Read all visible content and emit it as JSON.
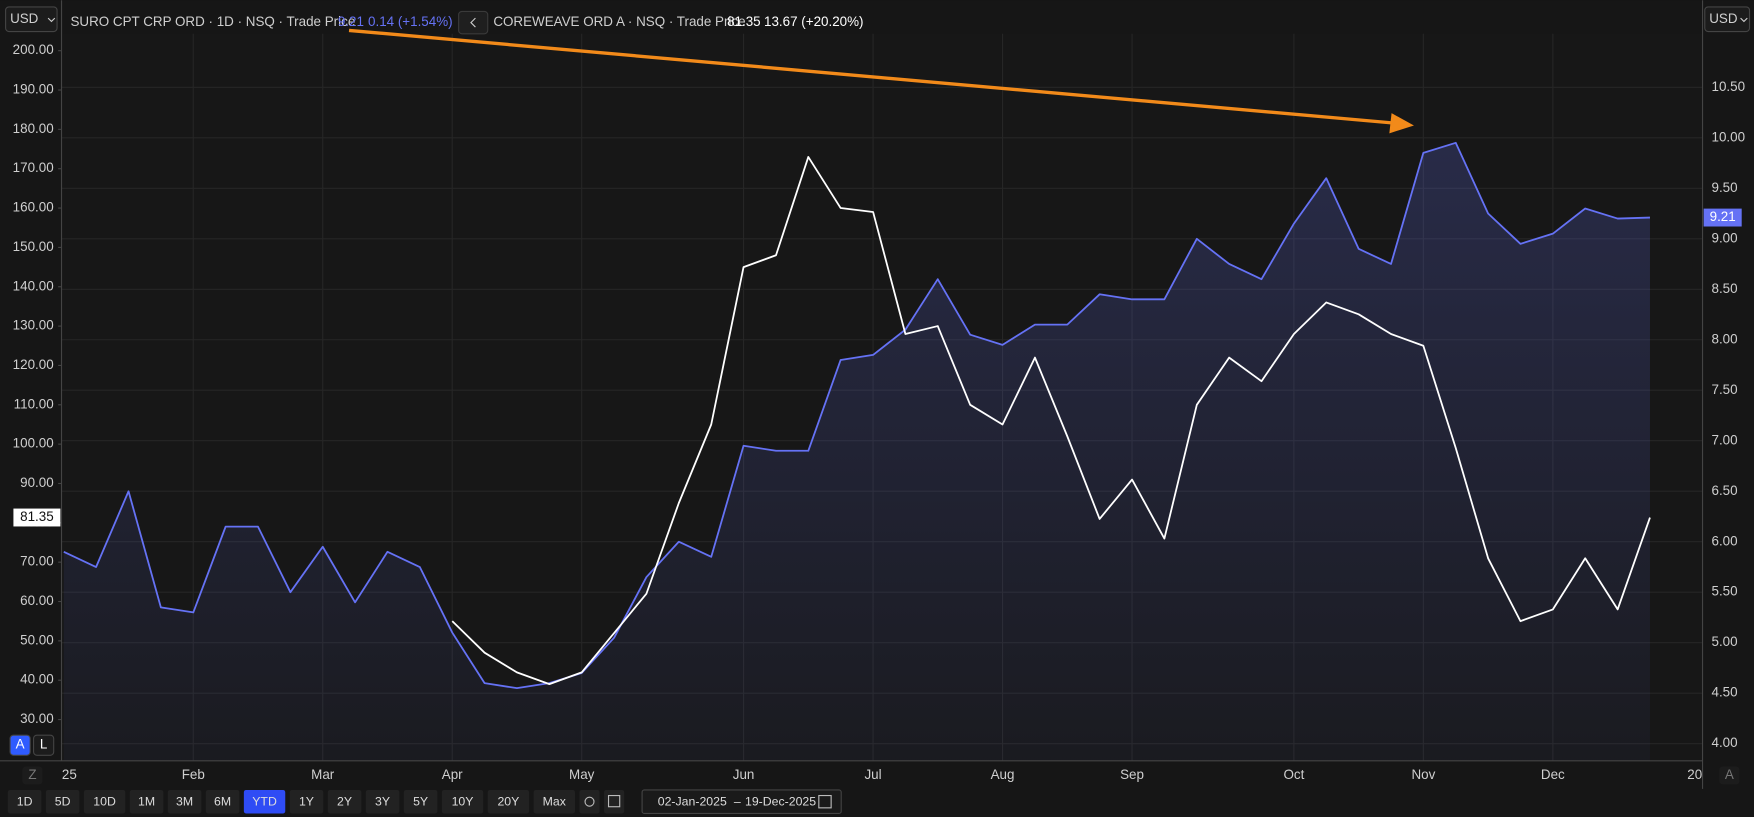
{
  "chart_data": {
    "type": "line",
    "currency_left": "USD",
    "currency_right": "USD",
    "categories": [
      "25",
      null,
      null,
      null,
      "Feb",
      null,
      null,
      null,
      "Mar",
      null,
      null,
      null,
      "Apr",
      null,
      null,
      null,
      "May",
      null,
      null,
      null,
      null,
      "Jun",
      null,
      null,
      null,
      "Jul",
      null,
      null,
      null,
      "Aug",
      null,
      null,
      null,
      "Sep",
      null,
      null,
      null,
      null,
      "Oct",
      null,
      null,
      null,
      "Nov",
      null,
      null,
      null,
      "Dec",
      null,
      null,
      null
    ],
    "x_end_label": "20",
    "series": [
      {
        "name": "SURO CPT CRP ORD · 1D · NSQ · Trade Price",
        "change": "0.14 (+1.54%)",
        "color": "#6572f5",
        "axis": "y2",
        "area": true,
        "values": [
          5.9,
          5.75,
          6.5,
          5.35,
          5.3,
          6.15,
          6.15,
          5.5,
          5.95,
          5.4,
          5.9,
          5.75,
          5.1,
          4.6,
          4.55,
          4.6,
          4.7,
          5.05,
          5.65,
          6.0,
          5.85,
          6.95,
          6.9,
          6.9,
          7.8,
          7.85,
          8.1,
          8.6,
          8.05,
          7.95,
          8.15,
          8.15,
          8.45,
          8.4,
          8.4,
          9.0,
          8.75,
          8.6,
          9.15,
          9.6,
          8.9,
          8.75,
          9.85,
          9.95,
          9.25,
          8.95,
          9.05,
          9.3,
          9.2,
          9.21
        ]
      },
      {
        "name": "COREWEAVE ORD A · NSQ · Trade Price",
        "change": "13.67 (+20.20%)",
        "color": "#ffffff",
        "axis": "y",
        "values": [
          null,
          null,
          null,
          null,
          null,
          null,
          null,
          null,
          null,
          null,
          null,
          null,
          55,
          47,
          42,
          39,
          42,
          52,
          62,
          85,
          105,
          145,
          148,
          173,
          160,
          159,
          128,
          130,
          110,
          105,
          122,
          102,
          81,
          91,
          76,
          110,
          122,
          116,
          128,
          136,
          133,
          128,
          125,
          99,
          71,
          55,
          58,
          71,
          58,
          81.35
        ]
      }
    ],
    "ylim": [
      19.5,
      204.3
    ],
    "yticks": [
      {
        "value": 30,
        "label": "30.00"
      },
      {
        "value": 40,
        "label": "40.00"
      },
      {
        "value": 50,
        "label": "50.00"
      },
      {
        "value": 60,
        "label": "60.00"
      },
      {
        "value": 70,
        "label": "70.00"
      },
      {
        "value": 80,
        "label": "80.00"
      },
      {
        "value": 90,
        "label": "90.00"
      },
      {
        "value": 100,
        "label": "100.00"
      },
      {
        "value": 110,
        "label": "110.00"
      },
      {
        "value": 120,
        "label": "120.00"
      },
      {
        "value": 130,
        "label": "130.00"
      },
      {
        "value": 140,
        "label": "140.00"
      },
      {
        "value": 150,
        "label": "150.00"
      },
      {
        "value": 160,
        "label": "160.00"
      },
      {
        "value": 170,
        "label": "170.00"
      },
      {
        "value": 180,
        "label": "180.00"
      },
      {
        "value": 190,
        "label": "190.00"
      },
      {
        "value": 200,
        "label": "200.00"
      }
    ],
    "y2lim": [
      3.83,
      11.03
    ],
    "y2ticks": [
      {
        "value": 4,
        "label": "4.00"
      },
      {
        "value": 4.5,
        "label": "4.50"
      },
      {
        "value": 5,
        "label": "5.00"
      },
      {
        "value": 5.5,
        "label": "5.50"
      },
      {
        "value": 6,
        "label": "6.00"
      },
      {
        "value": 6.5,
        "label": "6.50"
      },
      {
        "value": 7,
        "label": "7.00"
      },
      {
        "value": 7.5,
        "label": "7.50"
      },
      {
        "value": 8,
        "label": "8.00"
      },
      {
        "value": 8.5,
        "label": "8.50"
      },
      {
        "value": 9,
        "label": "9.00"
      },
      {
        "value": 9.5,
        "label": "9.50"
      },
      {
        "value": 10,
        "label": "10.00"
      },
      {
        "value": 10.5,
        "label": "10.50"
      }
    ],
    "grid": true,
    "arrow_color": "#f28a1a"
  },
  "controls": {
    "scale_modes": [
      "A",
      "L"
    ],
    "corner_left": "Z",
    "corner_right": "A",
    "ranges": [
      "1D",
      "5D",
      "10D",
      "1M",
      "3M",
      "6M",
      "YTD",
      "1Y",
      "2Y",
      "3Y",
      "5Y",
      "10Y",
      "20Y",
      "Max"
    ],
    "selected_range": "YTD",
    "date_from": "02-Jan-2025",
    "date_separator": "–",
    "date_to": "19-Dec-2025"
  }
}
